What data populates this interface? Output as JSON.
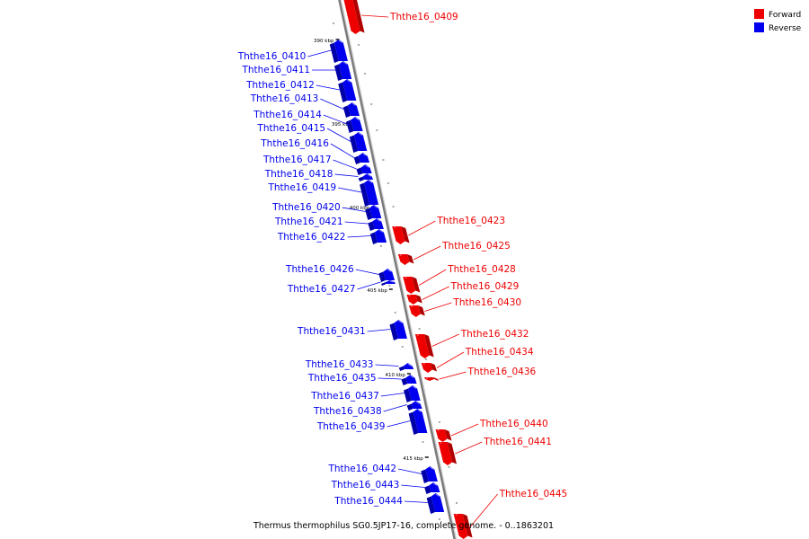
{
  "caption": "Thermus thermophilus SG0.5JP17-16, complete genome. - 0..1863201",
  "legend": {
    "forward": {
      "label": "Forward",
      "color": "#ee0000"
    },
    "reverse": {
      "label": "Reverse",
      "color": "#0000ee"
    }
  },
  "colors": {
    "forward": "#ee0000",
    "reverse": "#0000ee",
    "axis": "#888888"
  },
  "ticks": [
    "390 kbp",
    "395 kbp",
    "400 kbp",
    "405 kbp",
    "410 kbp",
    "415 kbp"
  ],
  "genes": [
    {
      "id": "Ththe16_0409",
      "strand": "forward"
    },
    {
      "id": "Ththe16_0410",
      "strand": "reverse"
    },
    {
      "id": "Ththe16_0411",
      "strand": "reverse"
    },
    {
      "id": "Ththe16_0412",
      "strand": "reverse"
    },
    {
      "id": "Ththe16_0413",
      "strand": "reverse"
    },
    {
      "id": "Ththe16_0414",
      "strand": "reverse"
    },
    {
      "id": "Ththe16_0415",
      "strand": "reverse"
    },
    {
      "id": "Ththe16_0416",
      "strand": "reverse"
    },
    {
      "id": "Ththe16_0417",
      "strand": "reverse"
    },
    {
      "id": "Ththe16_0418",
      "strand": "reverse"
    },
    {
      "id": "Ththe16_0419",
      "strand": "reverse"
    },
    {
      "id": "Ththe16_0420",
      "strand": "reverse"
    },
    {
      "id": "Ththe16_0421",
      "strand": "reverse"
    },
    {
      "id": "Ththe16_0422",
      "strand": "reverse"
    },
    {
      "id": "Ththe16_0423",
      "strand": "forward"
    },
    {
      "id": "Ththe16_0425",
      "strand": "forward"
    },
    {
      "id": "Ththe16_0426",
      "strand": "reverse"
    },
    {
      "id": "Ththe16_0427",
      "strand": "reverse"
    },
    {
      "id": "Ththe16_0428",
      "strand": "forward"
    },
    {
      "id": "Ththe16_0429",
      "strand": "forward"
    },
    {
      "id": "Ththe16_0430",
      "strand": "forward"
    },
    {
      "id": "Ththe16_0431",
      "strand": "reverse"
    },
    {
      "id": "Ththe16_0432",
      "strand": "forward"
    },
    {
      "id": "Ththe16_0433",
      "strand": "reverse"
    },
    {
      "id": "Ththe16_0434",
      "strand": "forward"
    },
    {
      "id": "Ththe16_0435",
      "strand": "reverse"
    },
    {
      "id": "Ththe16_0436",
      "strand": "forward"
    },
    {
      "id": "Ththe16_0437",
      "strand": "reverse"
    },
    {
      "id": "Ththe16_0438",
      "strand": "reverse"
    },
    {
      "id": "Ththe16_0439",
      "strand": "reverse"
    },
    {
      "id": "Ththe16_0440",
      "strand": "forward"
    },
    {
      "id": "Ththe16_0441",
      "strand": "forward"
    },
    {
      "id": "Ththe16_0442",
      "strand": "reverse"
    },
    {
      "id": "Ththe16_0443",
      "strand": "reverse"
    },
    {
      "id": "Ththe16_0444",
      "strand": "reverse"
    },
    {
      "id": "Ththe16_0445",
      "strand": "forward"
    }
  ]
}
